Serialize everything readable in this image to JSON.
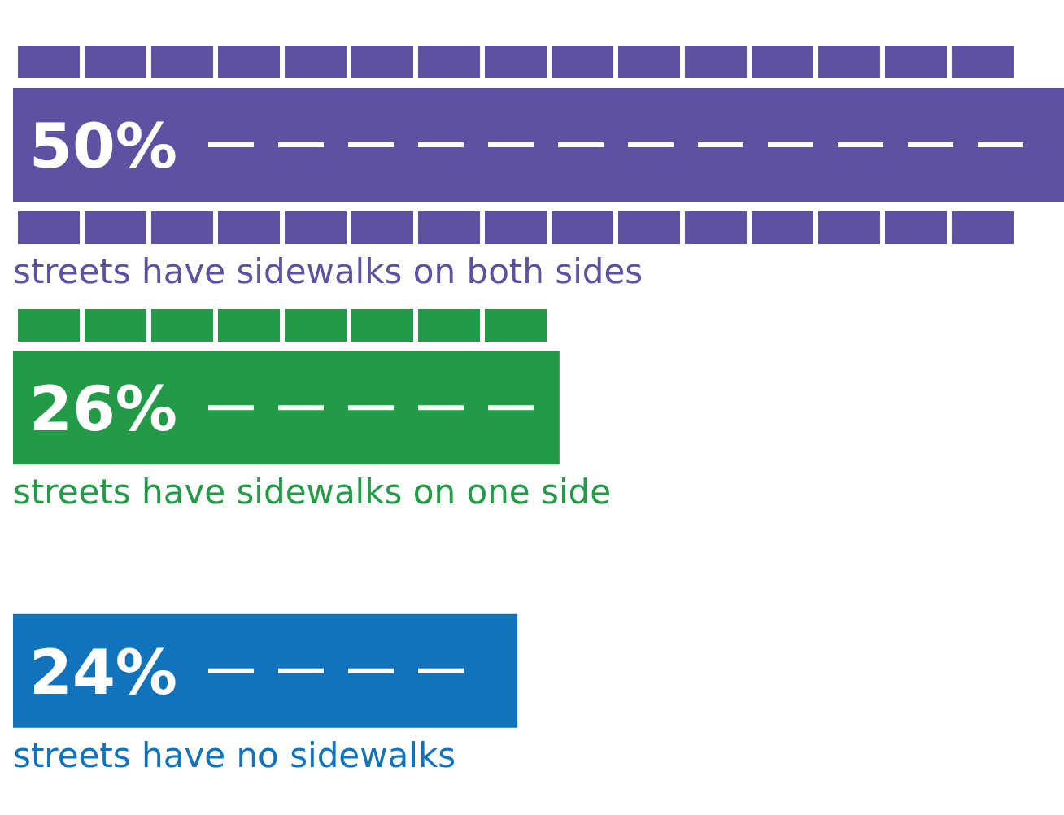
{
  "chart_data": {
    "type": "bar",
    "orientation": "horizontal",
    "categories": [
      "streets have sidewalks on both sides",
      "streets have sidewalks on one side",
      "streets have no sidewalks"
    ],
    "values": [
      50,
      26,
      24
    ],
    "value_labels": [
      "50%",
      "26%",
      "24%"
    ],
    "colors": [
      "#5f51a2",
      "#229a48",
      "#1173bb"
    ]
  }
}
